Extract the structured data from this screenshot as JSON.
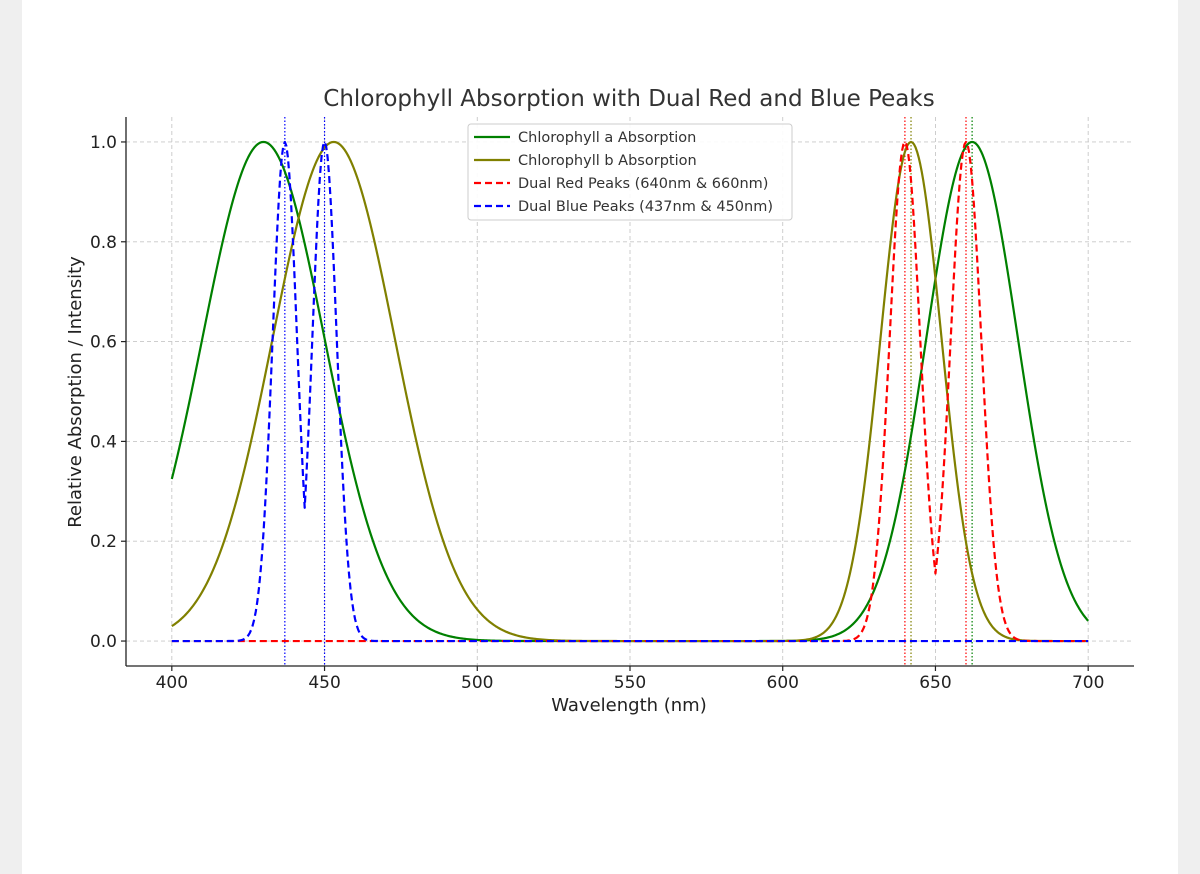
{
  "chart_data": {
    "type": "line",
    "title": "Chlorophyll Absorption with Dual Red and Blue Peaks",
    "xlabel": "Wavelength (nm)",
    "ylabel": "Relative Absorption / Intensity",
    "xlim": [
      385,
      715
    ],
    "ylim": [
      -0.05,
      1.05
    ],
    "xticks": [
      400,
      450,
      500,
      550,
      600,
      650,
      700
    ],
    "yticks": [
      0.0,
      0.2,
      0.4,
      0.6,
      0.8,
      1.0
    ],
    "xtick_labels": [
      "400",
      "450",
      "500",
      "550",
      "600",
      "650",
      "700"
    ],
    "ytick_labels": [
      "0.0",
      "0.2",
      "0.4",
      "0.6",
      "0.8",
      "1.0"
    ],
    "grid": true,
    "legend_position": "top-center",
    "x_range": [
      400,
      700
    ],
    "series": [
      {
        "name": "Chlorophyll a Absorption",
        "color": "#008000",
        "style": "solid",
        "components": [
          {
            "center": 430,
            "sigma": 20,
            "amplitude": 1.0
          },
          {
            "center": 662,
            "sigma": 15,
            "amplitude": 1.0
          }
        ]
      },
      {
        "name": "Chlorophyll b Absorption",
        "color": "#808000",
        "style": "solid",
        "components": [
          {
            "center": 453,
            "sigma": 20,
            "amplitude": 1.0
          },
          {
            "center": 642,
            "sigma": 10,
            "amplitude": 1.0
          }
        ]
      },
      {
        "name": "Dual Red Peaks (640nm & 660nm)",
        "color": "#ff0000",
        "style": "dashed",
        "components": [
          {
            "center": 640,
            "sigma": 5,
            "amplitude": 1.0
          },
          {
            "center": 660,
            "sigma": 5,
            "amplitude": 1.0
          }
        ]
      },
      {
        "name": "Dual Blue Peaks (437nm & 450nm)",
        "color": "#0000ff",
        "style": "dashed",
        "components": [
          {
            "center": 437,
            "sigma": 4,
            "amplitude": 1.0
          },
          {
            "center": 450,
            "sigma": 4,
            "amplitude": 1.0
          }
        ]
      }
    ],
    "vertical_lines": [
      {
        "x": 437,
        "color": "#0000ff"
      },
      {
        "x": 450,
        "color": "#0000ff"
      },
      {
        "x": 640,
        "color": "#ff0000"
      },
      {
        "x": 660,
        "color": "#ff0000"
      },
      {
        "x": 642,
        "color": "#808000"
      },
      {
        "x": 662,
        "color": "#008000"
      }
    ]
  }
}
